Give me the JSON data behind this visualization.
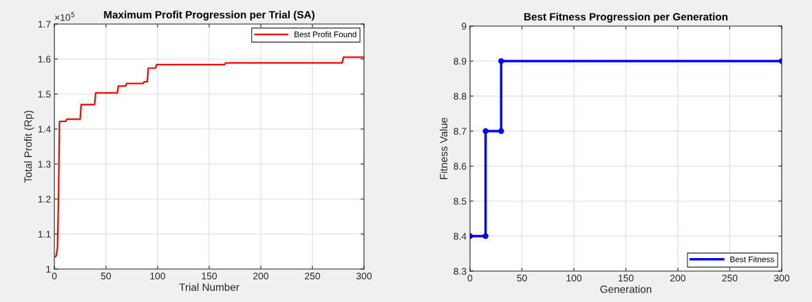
{
  "chart_data": [
    {
      "type": "line",
      "title": "Maximum Profit Progression per Trial (SA)",
      "xlabel": "Trial Number",
      "ylabel": "Total Profit (Rp)",
      "x": [
        1,
        2,
        3,
        4,
        5,
        11,
        12,
        25,
        26,
        39,
        40,
        61,
        62,
        69,
        70,
        86,
        87,
        90,
        91,
        98,
        99,
        165,
        166,
        279,
        280,
        300
      ],
      "series": [
        {
          "name": "Best Profit Found",
          "color": "#ff0000",
          "values": [
            1.035,
            1.04,
            1.06,
            1.2,
            1.422,
            1.422,
            1.428,
            1.428,
            1.47,
            1.47,
            1.503,
            1.503,
            1.523,
            1.523,
            1.53,
            1.53,
            1.535,
            1.535,
            1.574,
            1.574,
            1.584,
            1.584,
            1.589,
            1.589,
            1.605,
            1.605
          ]
        }
      ],
      "xlim": [
        0,
        300
      ],
      "xticks": [
        0,
        50,
        100,
        150,
        200,
        250,
        300
      ],
      "ylim": [
        1,
        1.7
      ],
      "yticks": [
        1,
        1.1,
        1.2,
        1.3,
        1.4,
        1.5,
        1.6,
        1.7
      ],
      "annotations": [
        "×10$^{5}$"
      ],
      "grid": true,
      "legend": "top right",
      "marker": "none",
      "line_style": "solid"
    },
    {
      "type": "line",
      "title": "Best Fitness Progression per Generation",
      "xlabel": "Generation",
      "ylabel": "Fitness Value",
      "x": [
        0,
        15,
        15,
        30,
        30,
        300
      ],
      "series": [
        {
          "name": "Best Fitness",
          "color": "#0000ff",
          "values": [
            8.4,
            8.4,
            8.7,
            8.7,
            8.9,
            8.9
          ]
        }
      ],
      "xlim": [
        0,
        300
      ],
      "xticks": [
        0,
        50,
        100,
        150,
        200,
        250,
        300
      ],
      "ylim": [
        8.3,
        9
      ],
      "yticks": [
        8.3,
        8.4,
        8.5,
        8.6,
        8.7,
        8.8,
        8.9,
        9
      ],
      "grid": true,
      "legend": "bottom right",
      "marker": "circle",
      "line_style": "solid"
    }
  ]
}
